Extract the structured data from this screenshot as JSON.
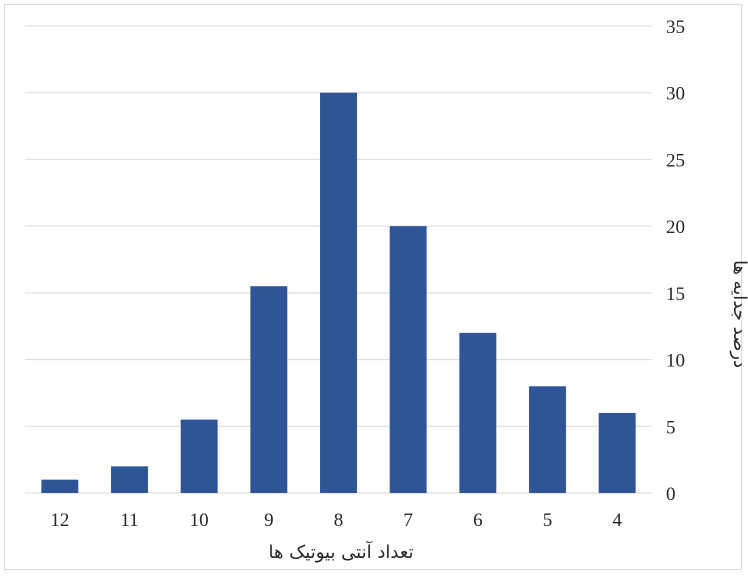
{
  "chart_data": {
    "type": "bar",
    "categories": [
      "12",
      "11",
      "10",
      "9",
      "8",
      "7",
      "6",
      "5",
      "4"
    ],
    "values": [
      1,
      2,
      5.5,
      15.5,
      30,
      20,
      12,
      8,
      6
    ],
    "xlabel": "تعداد آنتی بیوتیک ها",
    "ylabel": "درصد جدایه ها",
    "ylim": [
      0,
      35
    ],
    "y_ticks": [
      0,
      5,
      10,
      15,
      20,
      25,
      30,
      35
    ],
    "y_axis_position": "right",
    "grid": true,
    "bar_color": "#2f5597",
    "grid_color": "#d9d9d9"
  }
}
